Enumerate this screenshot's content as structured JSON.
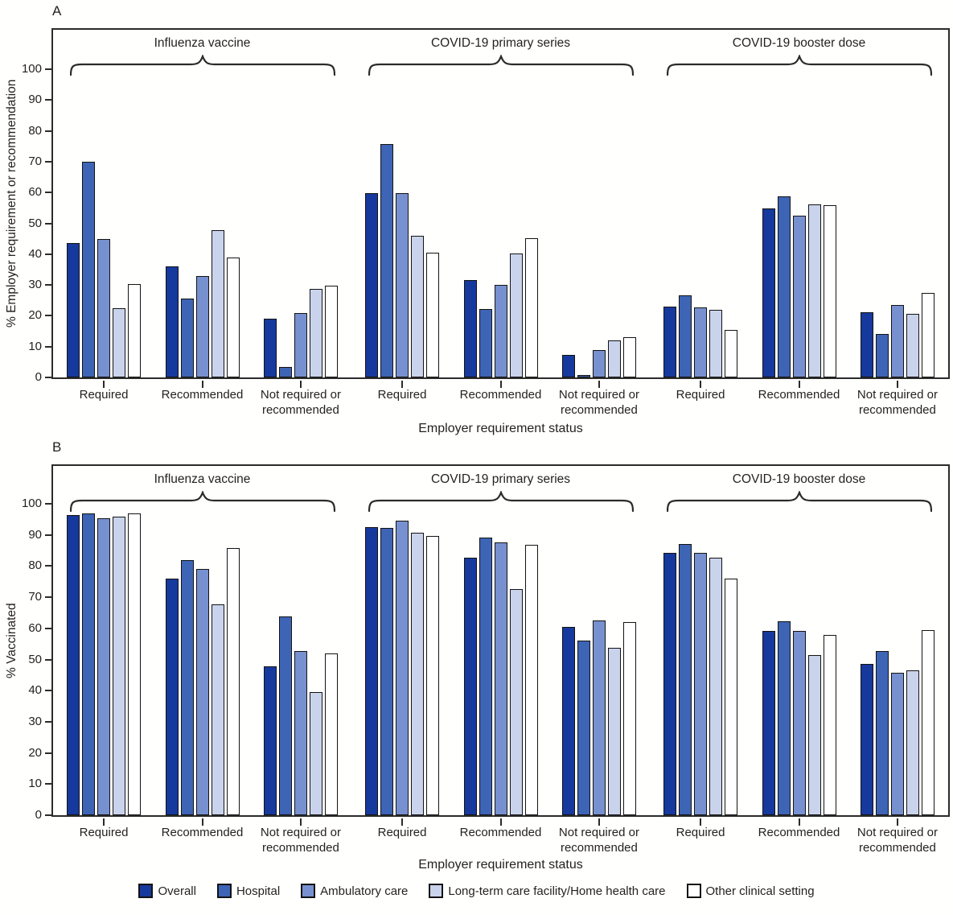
{
  "figure": {
    "panels": [
      {
        "label": "A",
        "y_axis_title": "% Employer requirement or recommendation",
        "x_axis_title": "Employer requirement status"
      },
      {
        "label": "B",
        "y_axis_title": "% Vaccinated",
        "x_axis_title": "Employer requirement status"
      }
    ],
    "colors": {
      "overall": "#16399d",
      "hospital": "#3d64b5",
      "ambulatory_care": "#7790cf",
      "long_term_care": "#c9d3ec",
      "other_clinical_setting": "#ffffff",
      "bar_outline": "#131313",
      "axis": "#231f20"
    }
  },
  "chart_data": [
    {
      "type": "bar",
      "panel": "A",
      "title": "",
      "ylabel": "% Employer requirement or recommendation",
      "xlabel": "Employer requirement status",
      "ylim": [
        0,
        100
      ],
      "ytick_step": 10,
      "grid": false,
      "legend_position": "bottom",
      "vaccine_groups": [
        "Influenza vaccine",
        "COVID-19 primary series",
        "COVID-19 booster dose"
      ],
      "categories": [
        "Required",
        "Recommended",
        "Not required or recommended"
      ],
      "values_order": "values[vaccine_group_index][category_index]",
      "series": [
        {
          "name": "Overall",
          "color": "#16399d",
          "values": [
            [
              43.7,
              36.0,
              19.0
            ],
            [
              59.7,
              31.6,
              7.4
            ],
            [
              23.0,
              54.8,
              21.2
            ]
          ]
        },
        {
          "name": "Hospital",
          "color": "#3d64b5",
          "values": [
            [
              70.0,
              25.6,
              3.4
            ],
            [
              75.8,
              22.2,
              0.7
            ],
            [
              26.6,
              58.8,
              14.0
            ]
          ]
        },
        {
          "name": "Ambulatory care",
          "color": "#7790cf",
          "values": [
            [
              45.0,
              32.9,
              21.0
            ],
            [
              59.8,
              30.1,
              8.8
            ],
            [
              22.8,
              52.6,
              23.4
            ]
          ]
        },
        {
          "name": "Long-term care facility/Home health care",
          "color": "#c9d3ec",
          "values": [
            [
              22.5,
              47.8,
              28.8
            ],
            [
              46.0,
              40.1,
              12.1
            ],
            [
              22.0,
              56.2,
              20.6
            ]
          ]
        },
        {
          "name": "Other clinical setting",
          "color": "#ffffff",
          "values": [
            [
              30.3,
              38.9,
              29.8
            ],
            [
              40.4,
              45.2,
              13.1
            ],
            [
              15.5,
              55.9,
              27.5
            ]
          ]
        }
      ]
    },
    {
      "type": "bar",
      "panel": "B",
      "title": "",
      "ylabel": "% Vaccinated",
      "xlabel": "Employer requirement status",
      "ylim": [
        0,
        100
      ],
      "ytick_step": 10,
      "grid": false,
      "legend_position": "bottom",
      "vaccine_groups": [
        "Influenza vaccine",
        "COVID-19 primary series",
        "COVID-19 booster dose"
      ],
      "categories": [
        "Required",
        "Recommended",
        "Not required or recommended"
      ],
      "values_order": "values[vaccine_group_index][category_index]",
      "series": [
        {
          "name": "Overall",
          "color": "#16399d",
          "values": [
            [
              96.4,
              75.9,
              47.8
            ],
            [
              92.5,
              82.7,
              60.4
            ],
            [
              84.3,
              59.2,
              48.7
            ]
          ]
        },
        {
          "name": "Hospital",
          "color": "#3d64b5",
          "values": [
            [
              96.8,
              82.0,
              63.8
            ],
            [
              92.2,
              89.1,
              56.2
            ],
            [
              87.2,
              62.2,
              52.8
            ]
          ]
        },
        {
          "name": "Ambulatory care",
          "color": "#7790cf",
          "values": [
            [
              95.3,
              79.0,
              52.8
            ],
            [
              94.6,
              87.7,
              62.5
            ],
            [
              84.2,
              59.3,
              45.7
            ]
          ]
        },
        {
          "name": "Long-term care facility/Home health care",
          "color": "#c9d3ec",
          "values": [
            [
              95.9,
              67.7,
              39.5
            ],
            [
              90.6,
              72.7,
              53.7
            ],
            [
              82.7,
              51.4,
              46.6
            ]
          ]
        },
        {
          "name": "Other clinical setting",
          "color": "#ffffff",
          "values": [
            [
              96.9,
              85.7,
              51.9
            ],
            [
              89.7,
              86.8,
              61.9
            ],
            [
              76.0,
              57.8,
              59.4
            ]
          ]
        }
      ]
    }
  ]
}
